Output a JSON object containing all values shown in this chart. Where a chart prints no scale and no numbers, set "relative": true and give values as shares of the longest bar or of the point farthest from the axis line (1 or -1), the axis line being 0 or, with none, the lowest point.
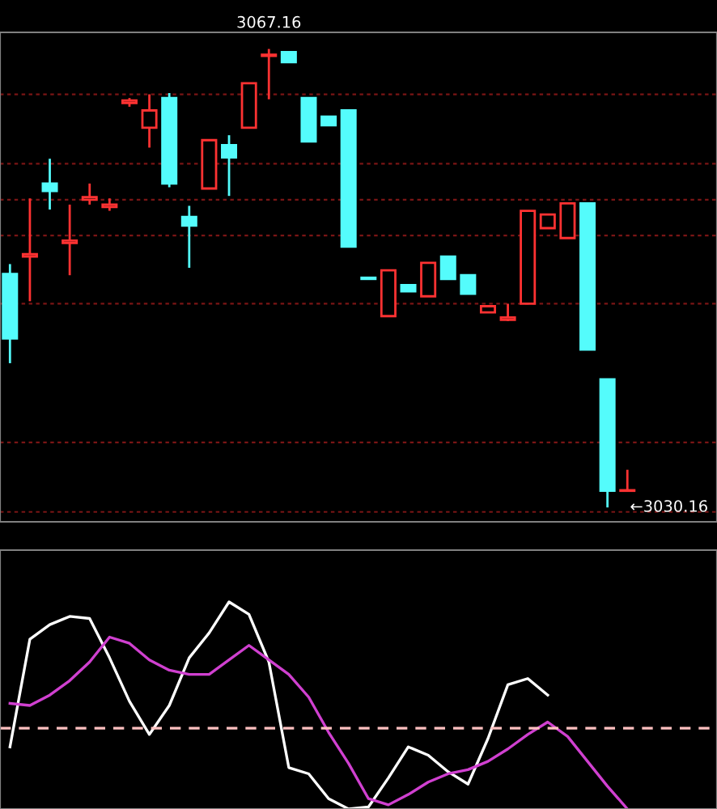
{
  "chart_data": [
    {
      "type": "candlestick",
      "categories": [
        null,
        null,
        null,
        null,
        null,
        null,
        null,
        null,
        null,
        null,
        null,
        null,
        null,
        null,
        null,
        null,
        null,
        null,
        null,
        null,
        null,
        null,
        null,
        null,
        null,
        null,
        null,
        null,
        null,
        null,
        null,
        null
      ],
      "ohlc": [
        [
          3049.0,
          3049.8,
          3041.8,
          3043.8
        ],
        [
          3050.4,
          3055.1,
          3046.8,
          3050.6
        ],
        [
          3056.3,
          3058.3,
          3054.2,
          3055.7
        ],
        [
          3051.5,
          3054.6,
          3048.9,
          3051.7
        ],
        [
          3055.0,
          3056.3,
          3054.6,
          3055.2
        ],
        [
          3054.4,
          3055.1,
          3054.1,
          3054.6
        ],
        [
          3062.8,
          3063.2,
          3062.5,
          3063.0
        ],
        [
          3060.8,
          3063.5,
          3059.2,
          3062.2
        ],
        [
          3063.2,
          3063.6,
          3056.0,
          3056.3
        ],
        [
          3053.6,
          3054.5,
          3049.5,
          3052.9
        ],
        [
          3055.9,
          3059.8,
          3055.9,
          3059.8
        ],
        [
          3059.4,
          3060.2,
          3055.3,
          3058.4
        ],
        [
          3060.8,
          3064.4,
          3060.8,
          3064.4
        ],
        [
          3066.6,
          3067.16,
          3063.1,
          3066.7
        ],
        [
          3066.9,
          3066.9,
          3066.1,
          3066.1
        ],
        [
          3063.2,
          3063.2,
          3059.7,
          3059.7
        ],
        [
          3061.7,
          3061.7,
          3061.0,
          3061.0
        ],
        [
          3062.2,
          3062.2,
          3051.2,
          3051.2
        ],
        [
          3048.7,
          3048.7,
          3048.6,
          3048.6
        ],
        [
          3045.6,
          3049.3,
          3045.6,
          3049.3
        ],
        [
          3048.1,
          3048.1,
          3047.6,
          3047.6
        ],
        [
          3047.2,
          3049.9,
          3047.2,
          3049.9
        ],
        [
          3050.4,
          3050.4,
          3048.6,
          3048.6
        ],
        [
          3048.9,
          3048.9,
          3047.4,
          3047.4
        ],
        [
          3045.9,
          3046.4,
          3045.9,
          3046.4
        ],
        [
          3045.3,
          3046.6,
          3045.2,
          3045.5
        ],
        [
          3046.6,
          3054.1,
          3046.6,
          3054.1
        ],
        [
          3052.7,
          3053.8,
          3052.7,
          3053.8
        ],
        [
          3051.9,
          3054.7,
          3051.9,
          3054.7
        ],
        [
          3054.7,
          3054.7,
          3042.9,
          3042.9
        ],
        [
          3040.5,
          3040.5,
          3030.16,
          3031.5
        ],
        [
          3031.5,
          3033.2,
          3031.5,
          3031.5
        ]
      ],
      "colors": [
        "#54fcfc",
        "#ff3232",
        "#54fcfc",
        "#ff3232",
        "#ff3232",
        "#ff3232",
        "#ff3232",
        "#ff3232",
        "#54fcfc",
        "#54fcfc",
        "#ff3232",
        "#54fcfc",
        "#ff3232",
        "#ff3232",
        "#54fcfc",
        "#54fcfc",
        "#54fcfc",
        "#54fcfc",
        "#54fcfc",
        "#ff3232",
        "#54fcfc",
        "#ff3232",
        "#54fcfc",
        "#54fcfc",
        "#ff3232",
        "#ff3232",
        "#ff3232",
        "#ff3232",
        "#ff3232",
        "#54fcfc",
        "#54fcfc",
        "#ff3232"
      ],
      "ylim": [
        3029.0,
        3068.5
      ],
      "yticks": [
        {
          "value": 3029.8,
          "label": null
        },
        {
          "value": 3035.4,
          "label": null
        },
        {
          "value": 3046.6,
          "label": null
        },
        {
          "value": 3052.1,
          "label": null
        },
        {
          "value": 3055.0,
          "label": null
        },
        {
          "value": 3057.9,
          "label": null
        },
        {
          "value": 3063.5,
          "label": null
        }
      ],
      "grid": "y",
      "annotations": [
        "3067.16",
        "←3030.16"
      ]
    },
    {
      "type": "line",
      "relative": true,
      "categories": [
        null,
        null,
        null,
        null,
        null,
        null,
        null,
        null,
        null,
        null,
        null,
        null,
        null,
        null,
        null,
        null,
        null,
        null,
        null,
        null,
        null,
        null,
        null,
        null,
        null,
        null,
        null,
        null,
        null,
        null,
        null,
        null
      ],
      "series": [
        {
          "color": "#ffffff",
          "values": [
            0.3,
            0.82,
            0.89,
            0.93,
            0.92,
            0.73,
            0.52,
            0.36,
            0.5,
            0.73,
            0.85,
            1,
            0.94,
            0.71,
            0.2,
            0.17,
            0.05,
            0,
            0.01,
            0.15,
            0.3,
            0.26,
            0.18,
            0.12,
            0.34,
            0.6,
            0.63,
            0.55,
            null,
            null,
            null,
            null
          ]
        },
        {
          "color": "#d040d0",
          "values": [
            0.51,
            0.5,
            0.55,
            0.62,
            0.71,
            0.83,
            0.8,
            0.72,
            0.67,
            0.65,
            0.65,
            0.72,
            0.79,
            0.72,
            0.65,
            0.54,
            0.37,
            0.22,
            0.05,
            0.02,
            0.07,
            0.13,
            0.17,
            0.19,
            0.23,
            0.29,
            0.36,
            0.42,
            0.35,
            0.23,
            0.11,
            0
          ]
        }
      ],
      "ref_lines": [
        {
          "axis": "y",
          "value": 0.39,
          "color": "#ffc0c0",
          "line_style": "dashed"
        }
      ]
    }
  ]
}
